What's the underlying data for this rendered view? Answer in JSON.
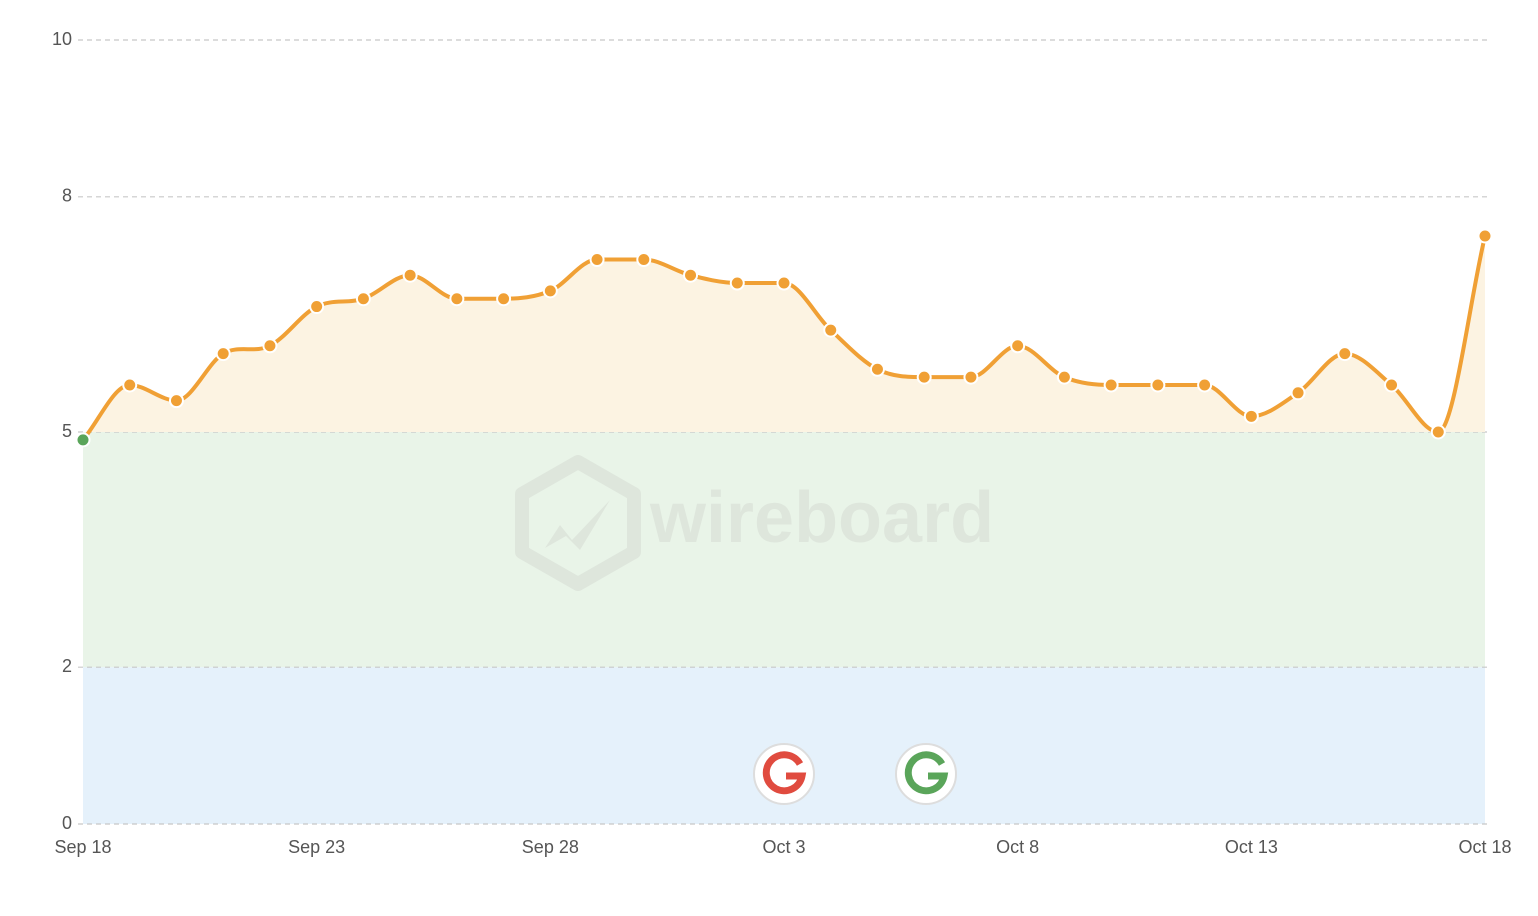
{
  "chart_data": {
    "type": "line",
    "watermark": "wireboard",
    "categories": [
      "Sep 18",
      null,
      null,
      null,
      null,
      "Sep 23",
      null,
      null,
      null,
      null,
      "Sep 28",
      null,
      null,
      null,
      null,
      "Oct 3",
      null,
      null,
      null,
      null,
      "Oct 8",
      null,
      null,
      null,
      null,
      "Oct 13",
      null,
      null,
      null,
      null,
      "Oct 18"
    ],
    "values": [
      4.9,
      5.6,
      5.4,
      6.0,
      6.1,
      6.6,
      6.7,
      7.0,
      6.7,
      6.7,
      6.8,
      7.2,
      7.2,
      7.0,
      6.9,
      6.9,
      6.3,
      5.8,
      5.7,
      5.7,
      6.1,
      5.7,
      5.6,
      5.6,
      5.6,
      5.2,
      5.5,
      6.0,
      5.6,
      5.0,
      7.5
    ],
    "color": "#f0a035",
    "area_color": "#fcf3e2",
    "point_colors": [
      "#5aa55a",
      "#f0a035",
      "#f0a035",
      "#f0a035",
      "#f0a035",
      "#f0a035",
      "#f0a035",
      "#f0a035",
      "#f0a035",
      "#f0a035",
      "#f0a035",
      "#f0a035",
      "#f0a035",
      "#f0a035",
      "#f0a035",
      "#f0a035",
      "#f0a035",
      "#f0a035",
      "#f0a035",
      "#f0a035",
      "#f0a035",
      "#f0a035",
      "#f0a035",
      "#f0a035",
      "#f0a035",
      "#f0a035",
      "#f0a035",
      "#f0a035",
      "#f0a035",
      "#f0a035",
      "#f0a035"
    ],
    "bands": [
      {
        "from": 0,
        "to": 2,
        "color": "#e5f1fb"
      },
      {
        "from": 2,
        "to": 5,
        "color": "#e9f4e8"
      }
    ],
    "ylim": [
      0,
      10
    ],
    "yticks": [
      0,
      2,
      5,
      8,
      10
    ],
    "grid": true
  }
}
